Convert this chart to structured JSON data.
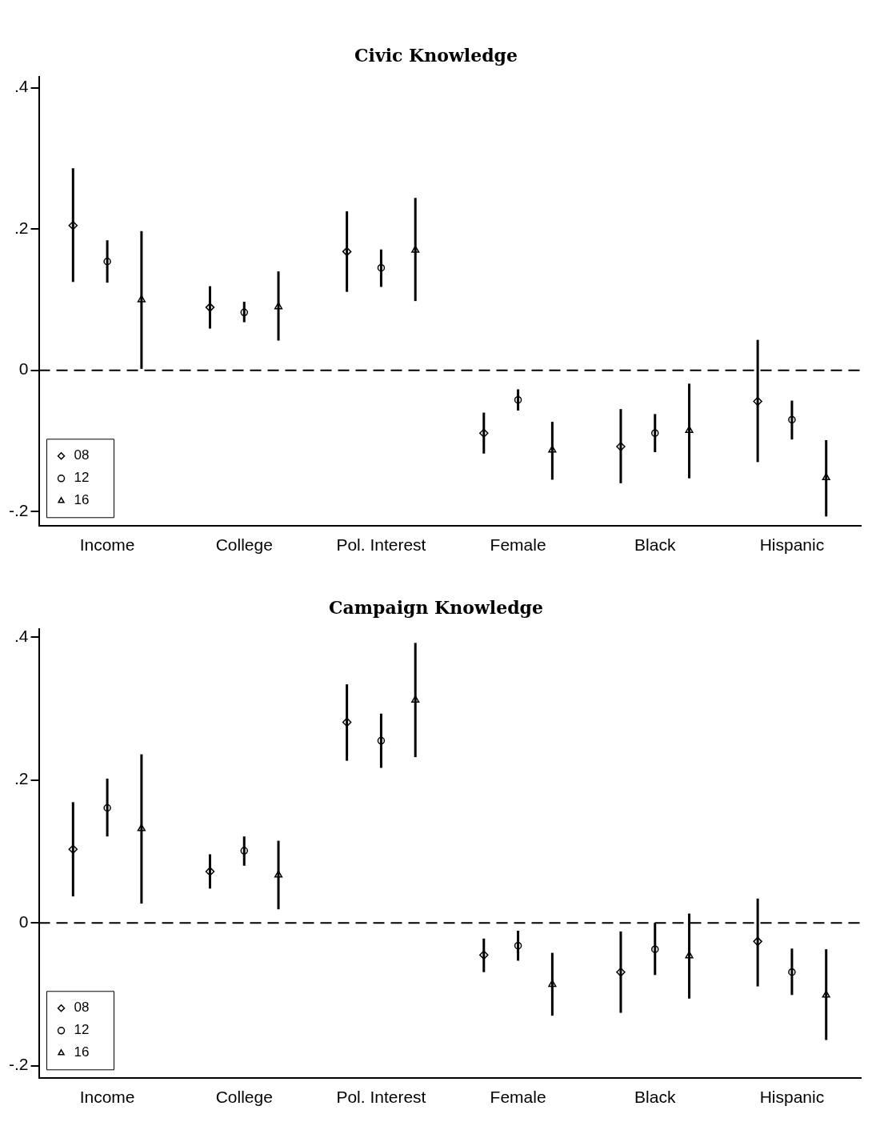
{
  "chart_data": [
    {
      "type": "scatter",
      "title": "Civic Knowledge",
      "categories": [
        "Income",
        "College",
        "Pol. Interest",
        "Female",
        "Black",
        "Hispanic"
      ],
      "ylim": [
        -0.22,
        0.415
      ],
      "yticks": [
        {
          "value": -0.2,
          "label": "-.2"
        },
        {
          "value": 0,
          "label": "0"
        },
        {
          "value": 0.2,
          "label": ".2"
        },
        {
          "value": 0.4,
          "label": ".4"
        }
      ],
      "grid": false,
      "legend": "bottom left",
      "ref_lines": [
        {
          "axis": "y",
          "value": 0,
          "line_style": "dashed",
          "color": "#000000"
        }
      ],
      "series": [
        {
          "name": "08",
          "color": "#000000",
          "marker": "diamond",
          "values": [
            0.205,
            0.089,
            0.168,
            -0.089,
            -0.108,
            -0.044
          ],
          "errors": [
            [
              0.125,
              0.286
            ],
            [
              0.059,
              0.119
            ],
            [
              0.111,
              0.225
            ],
            [
              -0.118,
              -0.06
            ],
            [
              -0.16,
              -0.055
            ],
            [
              -0.13,
              0.043
            ]
          ]
        },
        {
          "name": "12",
          "color": "#000000",
          "marker": "circle",
          "values": [
            0.154,
            0.082,
            0.145,
            -0.042,
            -0.089,
            -0.07
          ],
          "errors": [
            [
              0.124,
              0.184
            ],
            [
              0.068,
              0.097
            ],
            [
              0.118,
              0.171
            ],
            [
              -0.057,
              -0.027
            ],
            [
              -0.116,
              -0.062
            ],
            [
              -0.098,
              -0.043
            ]
          ]
        },
        {
          "name": "16",
          "color": "#000000",
          "marker": "triangle",
          "values": [
            0.1,
            0.09,
            0.17,
            -0.113,
            -0.085,
            -0.152
          ],
          "errors": [
            [
              0.002,
              0.197
            ],
            [
              0.042,
              0.14
            ],
            [
              0.098,
              0.244
            ],
            [
              -0.155,
              -0.073
            ],
            [
              -0.153,
              -0.019
            ],
            [
              -0.207,
              -0.099
            ]
          ]
        }
      ]
    },
    {
      "type": "scatter",
      "title": "Campaign Knowledge",
      "categories": [
        "Income",
        "College",
        "Pol. Interest",
        "Female",
        "Black",
        "Hispanic"
      ],
      "ylim": [
        -0.217,
        0.411
      ],
      "yticks": [
        {
          "value": -0.2,
          "label": "-.2"
        },
        {
          "value": 0,
          "label": "0"
        },
        {
          "value": 0.2,
          "label": ".2"
        },
        {
          "value": 0.4,
          "label": ".4"
        }
      ],
      "grid": false,
      "legend": "bottom left",
      "ref_lines": [
        {
          "axis": "y",
          "value": 0,
          "line_style": "dashed",
          "color": "#000000"
        }
      ],
      "series": [
        {
          "name": "08",
          "color": "#000000",
          "marker": "diamond",
          "values": [
            0.103,
            0.072,
            0.281,
            -0.045,
            -0.069,
            -0.026
          ],
          "errors": [
            [
              0.037,
              0.169
            ],
            [
              0.048,
              0.096
            ],
            [
              0.227,
              0.334
            ],
            [
              -0.069,
              -0.022
            ],
            [
              -0.126,
              -0.012
            ],
            [
              -0.089,
              0.034
            ]
          ]
        },
        {
          "name": "12",
          "color": "#000000",
          "marker": "circle",
          "values": [
            0.161,
            0.101,
            0.255,
            -0.032,
            -0.037,
            -0.069
          ],
          "errors": [
            [
              0.121,
              0.202
            ],
            [
              0.08,
              0.121
            ],
            [
              0.217,
              0.293
            ],
            [
              -0.053,
              -0.011
            ],
            [
              -0.073,
              0.0
            ],
            [
              -0.101,
              -0.036
            ]
          ]
        },
        {
          "name": "16",
          "color": "#000000",
          "marker": "triangle",
          "values": [
            0.132,
            0.067,
            0.312,
            -0.086,
            -0.046,
            -0.101
          ],
          "errors": [
            [
              0.027,
              0.236
            ],
            [
              0.019,
              0.115
            ],
            [
              0.232,
              0.392
            ],
            [
              -0.13,
              -0.042
            ],
            [
              -0.106,
              0.013
            ],
            [
              -0.164,
              -0.037
            ]
          ]
        }
      ]
    }
  ]
}
